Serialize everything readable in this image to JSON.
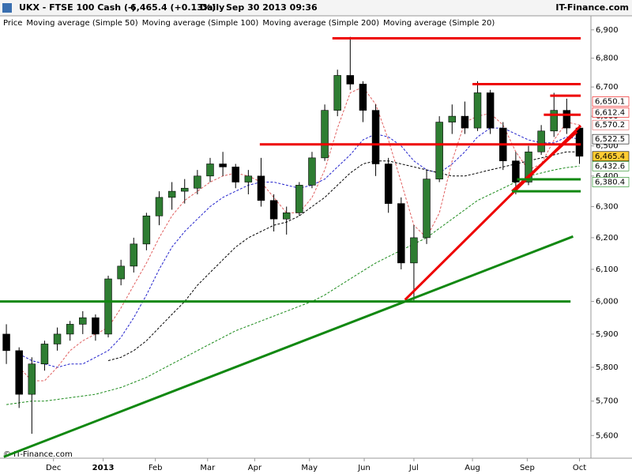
{
  "header": {
    "symbol": "UKX - FTSE 100 Cash (-)",
    "quote": "6,465.4 (+0.13%)",
    "period": "Daily",
    "datetime": "Sep 30 2013 09:36",
    "source": "IT-Finance.com"
  },
  "chart_data": {
    "type": "candlestick",
    "log_scale": true,
    "grid": false,
    "watermark": "© IT-Finance.com",
    "price": {
      "name": "Price",
      "up_color": "#2e7d32",
      "down_color": "#000000",
      "open": [
        5900,
        5850,
        5720,
        5810,
        5870,
        5900,
        5930,
        5950,
        5900,
        6070,
        6110,
        6180,
        6270,
        6330,
        6350,
        6360,
        6400,
        6440,
        6430,
        6380,
        6400,
        6320,
        6260,
        6280,
        6370,
        6460,
        6620,
        6740,
        6710,
        6620,
        6440,
        6310,
        6120,
        6200,
        6390,
        6580,
        6600,
        6560,
        6680,
        6560,
        6450,
        6380,
        6480,
        6550,
        6620,
        6560
      ],
      "high": [
        5930,
        5860,
        5830,
        5880,
        5920,
        5940,
        5970,
        5960,
        6080,
        6130,
        6200,
        6280,
        6350,
        6380,
        6390,
        6420,
        6460,
        6480,
        6440,
        6420,
        6460,
        6340,
        6300,
        6380,
        6480,
        6640,
        6760,
        6875,
        6720,
        6640,
        6460,
        6330,
        6240,
        6420,
        6600,
        6640,
        6650,
        6720,
        6690,
        6580,
        6480,
        6500,
        6570,
        6680,
        6660,
        6570
      ],
      "low": [
        5810,
        5680,
        5605,
        5790,
        5850,
        5880,
        5900,
        5880,
        5890,
        6050,
        6090,
        6160,
        6240,
        6290,
        6310,
        6340,
        6380,
        6400,
        6360,
        6340,
        6300,
        6220,
        6210,
        6270,
        6360,
        6450,
        6600,
        6690,
        6580,
        6400,
        6280,
        6100,
        6000,
        6180,
        6380,
        6540,
        6540,
        6550,
        6540,
        6420,
        6340,
        6370,
        6470,
        6530,
        6540,
        6440
      ],
      "close": [
        5850,
        5720,
        5810,
        5870,
        5900,
        5930,
        5950,
        5900,
        6070,
        6110,
        6180,
        6270,
        6330,
        6350,
        6360,
        6400,
        6440,
        6430,
        6380,
        6400,
        6320,
        6260,
        6280,
        6370,
        6460,
        6620,
        6740,
        6710,
        6620,
        6440,
        6310,
        6120,
        6200,
        6390,
        6580,
        6600,
        6560,
        6680,
        6560,
        6450,
        6380,
        6480,
        6550,
        6620,
        6560,
        6465.4
      ]
    },
    "series": [
      {
        "name": "Moving average (Simple 50)",
        "color": "#2222cc",
        "values": [
          null,
          5840,
          5820,
          5810,
          5800,
          5810,
          5810,
          5830,
          5850,
          5890,
          5950,
          6020,
          6100,
          6170,
          6220,
          6260,
          6300,
          6330,
          6350,
          6370,
          6380,
          6380,
          6370,
          6360,
          6370,
          6390,
          6430,
          6470,
          6520,
          6540,
          6530,
          6500,
          6450,
          6420,
          6410,
          6440,
          6480,
          6530,
          6560,
          6560,
          6540,
          6520,
          6510,
          6510,
          6530,
          6522.5
        ]
      },
      {
        "name": "Moving average (Simple 100)",
        "color": "#000000",
        "values": [
          null,
          null,
          null,
          null,
          null,
          null,
          null,
          null,
          5820,
          5830,
          5850,
          5880,
          5920,
          5960,
          6000,
          6050,
          6090,
          6130,
          6170,
          6200,
          6220,
          6240,
          6250,
          6270,
          6300,
          6330,
          6370,
          6410,
          6440,
          6450,
          6450,
          6440,
          6430,
          6420,
          6410,
          6400,
          6400,
          6410,
          6420,
          6430,
          6440,
          6450,
          6460,
          6470,
          6480,
          6480
        ]
      },
      {
        "name": "Moving average (Simple 200)",
        "color": "#1a8a1a",
        "values": [
          5690,
          5695,
          5700,
          5700,
          5705,
          5710,
          5715,
          5720,
          5730,
          5740,
          5755,
          5770,
          5790,
          5810,
          5830,
          5850,
          5870,
          5890,
          5910,
          5925,
          5940,
          5955,
          5970,
          5985,
          6000,
          6020,
          6045,
          6070,
          6095,
          6120,
          6140,
          6160,
          6180,
          6200,
          6230,
          6260,
          6290,
          6320,
          6340,
          6360,
          6380,
          6400,
          6410,
          6420,
          6428,
          6432.6
        ]
      },
      {
        "name": "Moving average (Simple 20)",
        "color": "#e06060",
        "values": [
          null,
          5800,
          5760,
          5760,
          5800,
          5850,
          5880,
          5900,
          5920,
          5980,
          6050,
          6120,
          6200,
          6270,
          6320,
          6350,
          6380,
          6400,
          6410,
          6400,
          6380,
          6330,
          6280,
          6280,
          6330,
          6420,
          6560,
          6680,
          6700,
          6640,
          6520,
          6380,
          6240,
          6200,
          6280,
          6450,
          6580,
          6600,
          6610,
          6570,
          6480,
          6420,
          6440,
          6520,
          6580,
          6570.2
        ]
      }
    ],
    "xlim": [
      -0.5,
      45.9
    ],
    "xticks": [
      {
        "value": 3.7,
        "label": "Dec"
      },
      {
        "value": 7.6,
        "label": "2013"
      },
      {
        "value": 11.7,
        "label": "Feb"
      },
      {
        "value": 15.8,
        "label": "Mar"
      },
      {
        "value": 19.5,
        "label": "Apr"
      },
      {
        "value": 23.8,
        "label": "May"
      },
      {
        "value": 28.1,
        "label": "Jun"
      },
      {
        "value": 32.0,
        "label": "Jul"
      },
      {
        "value": 36.6,
        "label": "Aug"
      },
      {
        "value": 40.9,
        "label": "Sep"
      },
      {
        "value": 45.0,
        "label": "Oct"
      }
    ],
    "ylim": [
      5535,
      6950
    ],
    "yticks": [
      {
        "value": 5600,
        "label": "5,600"
      },
      {
        "value": 5700,
        "label": "5,700"
      },
      {
        "value": 5800,
        "label": "5,800"
      },
      {
        "value": 5900,
        "label": "5,900"
      },
      {
        "value": 6000,
        "label": "6,000"
      },
      {
        "value": 6100,
        "label": "6,100"
      },
      {
        "value": 6200,
        "label": "6,200"
      },
      {
        "value": 6300,
        "label": "6,300"
      },
      {
        "value": 6400,
        "label": "6,400"
      },
      {
        "value": 6500,
        "label": "6,500"
      },
      {
        "value": 6600,
        "label": "6,600"
      },
      {
        "value": 6700,
        "label": "6,700"
      },
      {
        "value": 6800,
        "label": "6,800"
      },
      {
        "value": 6900,
        "label": "6,900"
      }
    ],
    "trendlines": [
      {
        "color": "#ee0000",
        "x": [
          25.6,
          45.1
        ],
        "y": [
          6870,
          6870
        ]
      },
      {
        "color": "#ee0000",
        "x": [
          36.6,
          45.1
        ],
        "y": [
          6710,
          6710
        ]
      },
      {
        "color": "#ee0000",
        "x": [
          42.7,
          45.1
        ],
        "y": [
          6670,
          6670
        ]
      },
      {
        "color": "#ee0000",
        "x": [
          42.2,
          45.1
        ],
        "y": [
          6605,
          6605
        ]
      },
      {
        "color": "#ee0000",
        "x": [
          19.9,
          45.1
        ],
        "y": [
          6505,
          6505
        ]
      },
      {
        "color": "#ee0000",
        "x": [
          31.3,
          45.1
        ],
        "y": [
          6005,
          6568
        ]
      },
      {
        "color": "#ee0000",
        "x": [
          39.7,
          44.8
        ],
        "y": [
          6350,
          6547
        ]
      },
      {
        "color": "#118811",
        "x": [
          -0.5,
          44.3
        ],
        "y": [
          6000,
          6000
        ]
      },
      {
        "color": "#118811",
        "x": [
          -0.2,
          44.5
        ],
        "y": [
          5539,
          6204
        ]
      },
      {
        "color": "#118811",
        "x": [
          40.1,
          45.1
        ],
        "y": [
          6389,
          6389
        ]
      },
      {
        "color": "#118811",
        "x": [
          39.7,
          45.1
        ],
        "y": [
          6350,
          6350
        ]
      }
    ],
    "price_labels": [
      {
        "value": 6650.1,
        "label": "6,650.1",
        "color": "#ee0000",
        "background": "#ffffff"
      },
      {
        "value": 6612.4,
        "label": "6,612.4",
        "color": "#ee0000",
        "background": "#ffffff"
      },
      {
        "value": 6570.2,
        "label": "6,570.2",
        "color": "#e06060",
        "background": "#ffffff"
      },
      {
        "value": 6522.5,
        "label": "6,522.5",
        "color": "#000000",
        "background": "#ffffff"
      },
      {
        "value": 6465.4,
        "label": "6,465.4",
        "color": "#000000",
        "background": "#ffcc33"
      },
      {
        "value": 6432.6,
        "label": "6,432.6",
        "color": "#1a8a1a",
        "background": "#ffffff"
      },
      {
        "value": 6380.4,
        "label": "6,380.4",
        "color": "#118811",
        "background": "#ffffff"
      }
    ]
  }
}
